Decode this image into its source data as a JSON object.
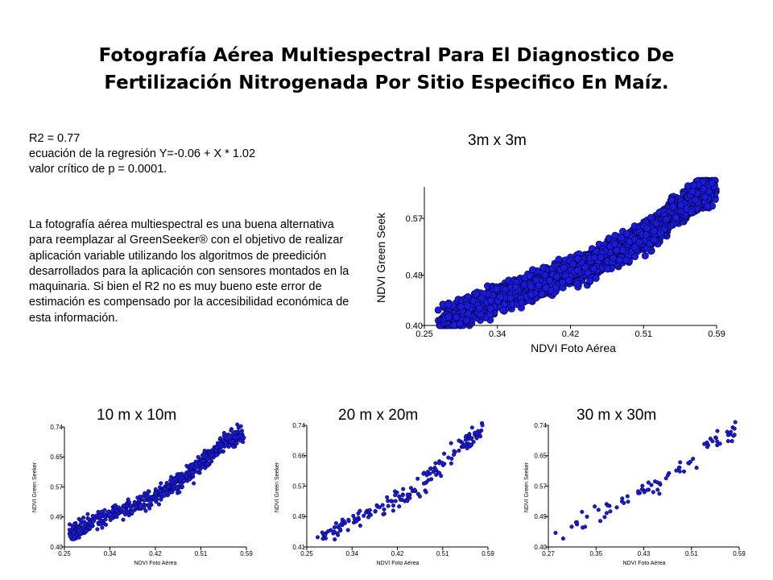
{
  "title": {
    "line1": "Fotografía Aérea Multiespectral Para El Diagnostico De",
    "line2": "Fertilización Nitrogenada Por Sitio Especifico En Maíz."
  },
  "stats": {
    "r2": "R2 = 0.77",
    "equation": "ecuación de la regresión Y=-0.06 + X * 1.02",
    "p_value": "valor crítico de p  = 0.0001."
  },
  "description": "La fotografía aérea multiespectral es una buena alternativa para reemplazar al GreenSeeker® con el objetivo de realizar aplicación variable utilizando los algoritmos de preedición desarrollados para la aplicación con sensores montados en la maquinaria. Si bien el R2 no es muy bueno este error de estimación es compensado por la accesibilidad económica de esta información.",
  "colors": {
    "marker_fill": "#1a1ad8",
    "marker_edge": "#000033"
  },
  "chart_data": [
    {
      "type": "scatter",
      "title": "3m x 3m",
      "xlabel": "NDVI Foto Aérea",
      "ylabel": "NDVI Green Seek",
      "xlim": [
        0.25,
        0.59
      ],
      "ylim": [
        0.4,
        0.62
      ],
      "xticks": [
        "0.25",
        "0.34",
        "0.42",
        "0.51",
        "0.59"
      ],
      "yticks": [
        "0.40",
        "0.48",
        "0.57"
      ],
      "trend": [
        [
          0.27,
          0.405
        ],
        [
          0.33,
          0.44
        ],
        [
          0.39,
          0.47
        ],
        [
          0.45,
          0.5
        ],
        [
          0.51,
          0.545
        ],
        [
          0.56,
          0.6
        ],
        [
          0.585,
          0.62
        ]
      ],
      "spread": 0.02,
      "n": 2600,
      "grid": false
    },
    {
      "type": "scatter",
      "title": "10 m x 10m",
      "xlabel": "NDVI Foto Aérea",
      "ylabel": "NDVI Green Seeker",
      "xlim": [
        0.25,
        0.59
      ],
      "ylim": [
        0.4,
        0.74
      ],
      "xticks": [
        "0.25",
        "0.34",
        "0.42",
        "0.51",
        "0.59"
      ],
      "yticks": [
        "0.40",
        "0.49",
        "0.57",
        "0.65",
        "0.74"
      ],
      "trend": [
        [
          0.26,
          0.44
        ],
        [
          0.32,
          0.48
        ],
        [
          0.4,
          0.53
        ],
        [
          0.46,
          0.58
        ],
        [
          0.51,
          0.64
        ],
        [
          0.55,
          0.7
        ],
        [
          0.585,
          0.72
        ]
      ],
      "spread": 0.022,
      "n": 650,
      "grid": false
    },
    {
      "type": "scatter",
      "title": "20 m x 20m",
      "xlabel": "NDVI Foto Aérea",
      "ylabel": "NDVI Green Seeker",
      "xlim": [
        0.25,
        0.59
      ],
      "ylim": [
        0.41,
        0.74
      ],
      "xticks": [
        "0.25",
        "0.34",
        "0.42",
        "0.51",
        "0.59"
      ],
      "yticks": [
        "0.41",
        "0.49",
        "0.57",
        "0.66",
        "0.74"
      ],
      "trend": [
        [
          0.27,
          0.43
        ],
        [
          0.33,
          0.48
        ],
        [
          0.4,
          0.52
        ],
        [
          0.46,
          0.57
        ],
        [
          0.51,
          0.64
        ],
        [
          0.55,
          0.7
        ],
        [
          0.58,
          0.73
        ]
      ],
      "spread": 0.022,
      "n": 170,
      "grid": false
    },
    {
      "type": "scatter",
      "title": "30 m x 30m",
      "xlabel": "NDVI Foto Aérea",
      "ylabel": "NDVI Green Seeker",
      "xlim": [
        0.27,
        0.59
      ],
      "ylim": [
        0.4,
        0.74
      ],
      "xticks": [
        "0.27",
        "0.35",
        "0.43",
        "0.51",
        "0.59"
      ],
      "yticks": [
        "0.40",
        "0.49",
        "0.57",
        "0.65",
        "0.74"
      ],
      "trend": [
        [
          0.28,
          0.43
        ],
        [
          0.34,
          0.48
        ],
        [
          0.4,
          0.53
        ],
        [
          0.46,
          0.58
        ],
        [
          0.51,
          0.64
        ],
        [
          0.55,
          0.7
        ],
        [
          0.585,
          0.73
        ]
      ],
      "spread": 0.022,
      "n": 80,
      "grid": false
    }
  ]
}
